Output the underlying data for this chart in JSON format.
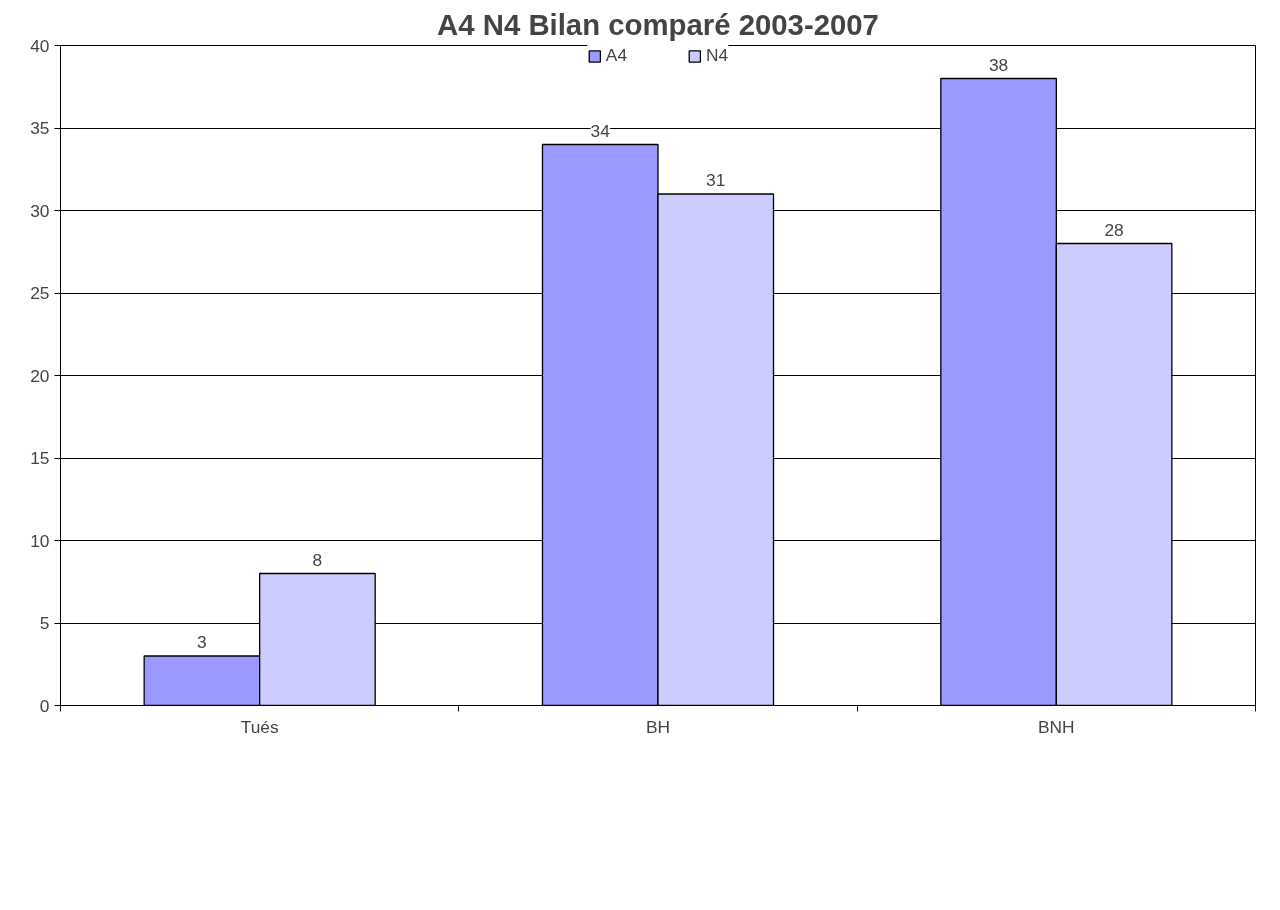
{
  "chart_data": {
    "type": "bar",
    "title": "A4 N4 Bilan comparé 2003-2007",
    "categories": [
      "Tués",
      "BH",
      "BNH"
    ],
    "series": [
      {
        "name": "A4",
        "color": "#9999ff",
        "values": [
          3,
          34,
          38
        ]
      },
      {
        "name": "N4",
        "color": "#ccccff",
        "values": [
          8,
          31,
          28
        ]
      }
    ],
    "ylim": [
      0,
      40
    ],
    "yticks": [
      0,
      5,
      10,
      15,
      20,
      25,
      30,
      35,
      40
    ],
    "grid": "y",
    "legend": "top",
    "data_labels": true
  }
}
